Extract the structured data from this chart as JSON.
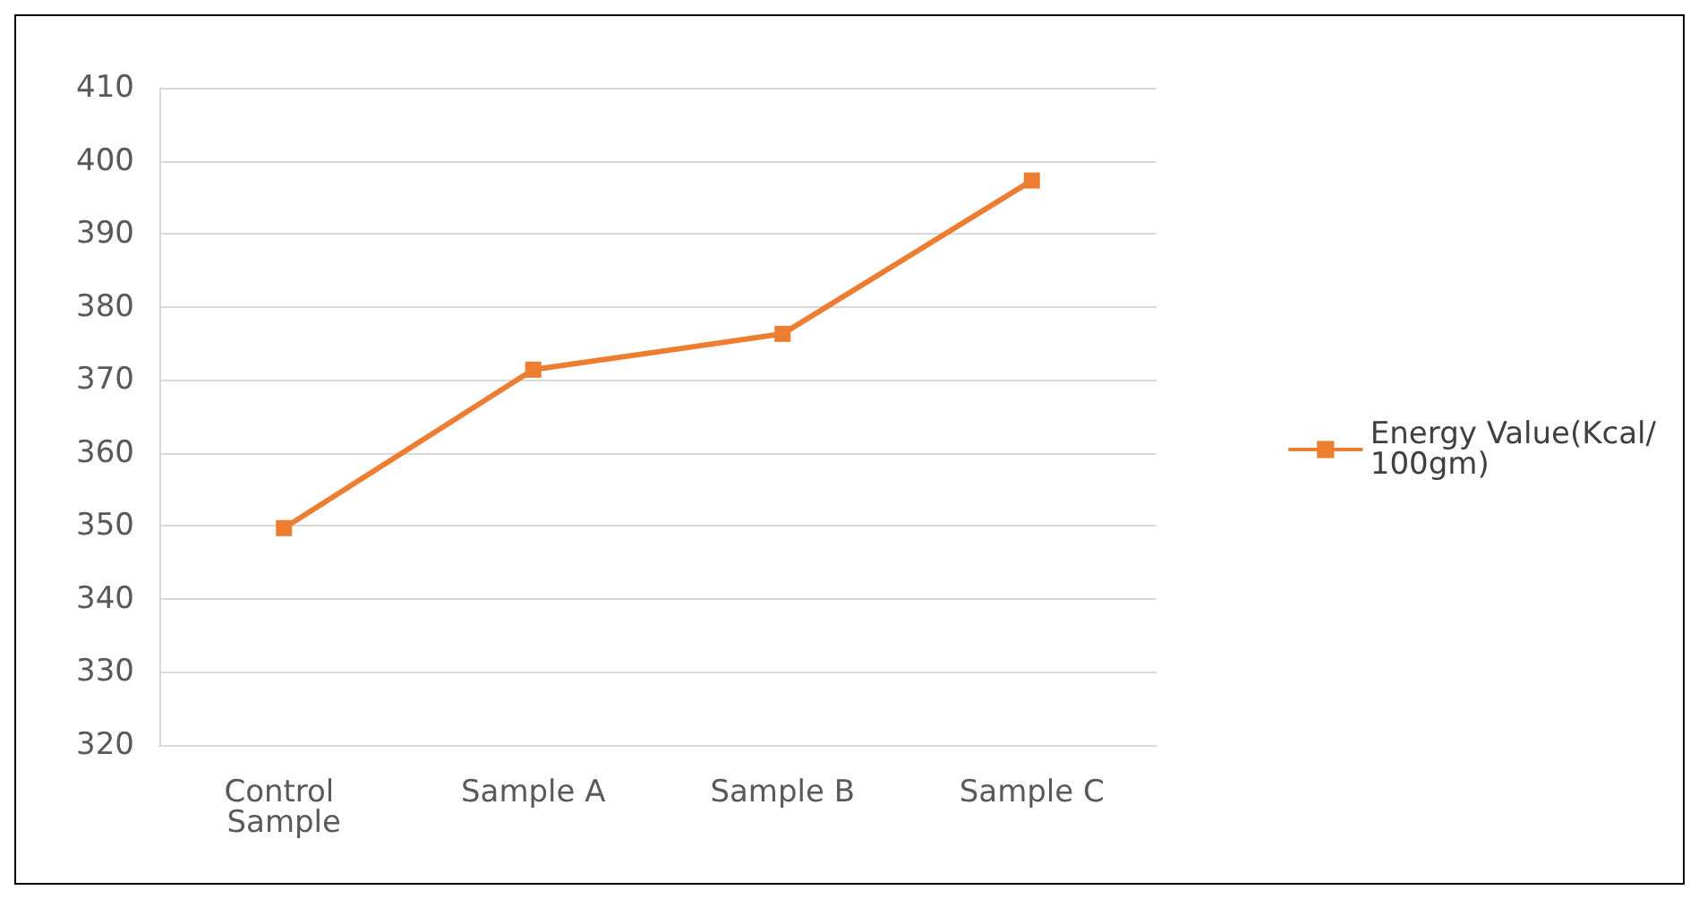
{
  "chart_data": {
    "type": "line",
    "categories": [
      "Control Sample",
      "Sample A",
      "Sample B",
      "Sample C"
    ],
    "series": [
      {
        "name": "Energy Value(Kcal/100gm)",
        "color": "#ed7d31",
        "values": [
          349.7,
          371.4,
          376.3,
          397.3
        ]
      }
    ],
    "ylim": [
      320,
      410
    ],
    "yticks": [
      320,
      330,
      340,
      350,
      360,
      370,
      380,
      390,
      400,
      410
    ],
    "grid": "y",
    "legend": "right",
    "marker": "square",
    "line_style": "solid"
  }
}
